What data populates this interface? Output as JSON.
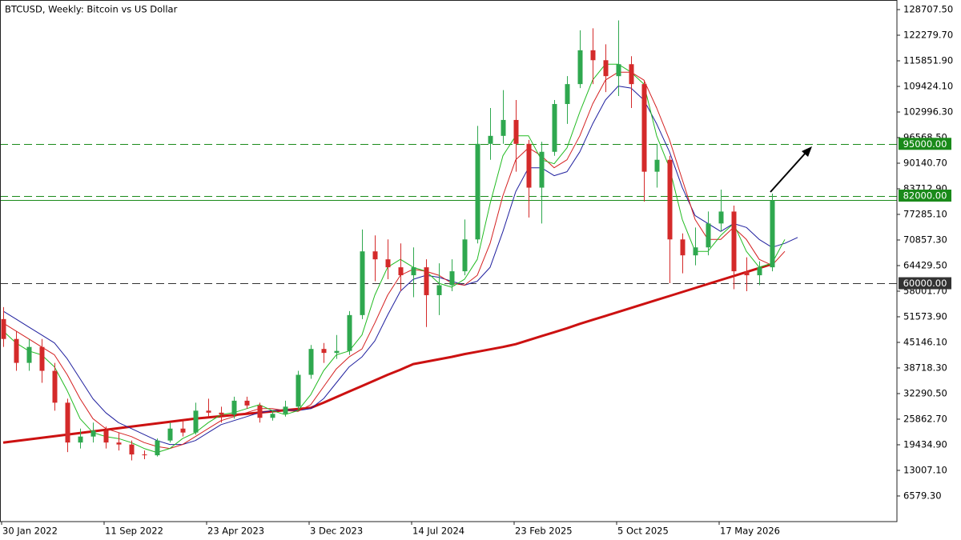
{
  "chart_data": {
    "type": "candlestick",
    "title": "BTCUSD, Weekly:  Bitcoin vs US Dollar",
    "categories": [
      "30 Jan 2022",
      null,
      null,
      null,
      null,
      null,
      null,
      null,
      "11 Sep 2022",
      null,
      null,
      null,
      null,
      null,
      null,
      null,
      "23 Apr 2023",
      null,
      null,
      null,
      null,
      null,
      null,
      null,
      "3 Dec 2023",
      null,
      null,
      null,
      null,
      null,
      null,
      null,
      "14 Jul 2024",
      null,
      null,
      null,
      null,
      null,
      null,
      null,
      "23 Feb 2025",
      null,
      null,
      null,
      null,
      null,
      null,
      null,
      "5 Oct 2025",
      null,
      null,
      null,
      null,
      null,
      null,
      null,
      "17 May 2026",
      null,
      null,
      null,
      null,
      null,
      null
    ],
    "ohlc": [
      [
        51000,
        54000,
        44000,
        46000
      ],
      [
        46000,
        48000,
        38000,
        40000
      ],
      [
        40000,
        46000,
        38000,
        44000
      ],
      [
        44000,
        46000,
        35000,
        38000
      ],
      [
        38000,
        40000,
        28000,
        30000
      ],
      [
        30000,
        31000,
        17600,
        20000
      ],
      [
        20000,
        23500,
        18500,
        21500
      ],
      [
        21500,
        25000,
        20000,
        23000
      ],
      [
        23000,
        24000,
        18500,
        20000
      ],
      [
        20000,
        22500,
        18000,
        19500
      ],
      [
        19500,
        20500,
        15500,
        17000
      ],
      [
        17000,
        18000,
        15800,
        16800
      ],
      [
        16800,
        21000,
        16500,
        20500
      ],
      [
        20500,
        25000,
        20000,
        23500
      ],
      [
        23500,
        25500,
        21500,
        22500
      ],
      [
        22500,
        30000,
        22000,
        28000
      ],
      [
        28000,
        31000,
        26500,
        27500
      ],
      [
        27500,
        29000,
        25000,
        27000
      ],
      [
        27000,
        31500,
        26000,
        30500
      ],
      [
        30500,
        31500,
        28500,
        29300
      ],
      [
        29300,
        30000,
        25000,
        26200
      ],
      [
        26200,
        28000,
        25500,
        27200
      ],
      [
        27200,
        30500,
        26500,
        29000
      ],
      [
        29000,
        38000,
        28500,
        37000
      ],
      [
        37000,
        44500,
        36000,
        43500
      ],
      [
        43500,
        45000,
        40000,
        42500
      ],
      [
        42500,
        47000,
        41000,
        43000
      ],
      [
        43000,
        53000,
        42000,
        52000
      ],
      [
        52000,
        73500,
        51000,
        68000
      ],
      [
        68000,
        72000,
        60500,
        66000
      ],
      [
        66000,
        71000,
        61000,
        64000
      ],
      [
        64000,
        70000,
        58000,
        62000
      ],
      [
        62000,
        69000,
        56500,
        64000
      ],
      [
        64000,
        66000,
        49000,
        57000
      ],
      [
        57000,
        65000,
        52000,
        59500
      ],
      [
        59500,
        66000,
        58000,
        63000
      ],
      [
        63000,
        76000,
        62000,
        71000
      ],
      [
        71000,
        99500,
        70000,
        95000
      ],
      [
        95000,
        104000,
        91000,
        97000
      ],
      [
        97000,
        108500,
        95000,
        101000
      ],
      [
        101000,
        106000,
        88000,
        95000
      ],
      [
        95000,
        96000,
        76500,
        84000
      ],
      [
        84000,
        95500,
        75000,
        93000
      ],
      [
        93000,
        106000,
        92000,
        105000
      ],
      [
        105000,
        112000,
        100000,
        110000
      ],
      [
        110000,
        123500,
        109000,
        118500
      ],
      [
        118500,
        124000,
        110000,
        116000
      ],
      [
        116000,
        120000,
        108000,
        112000
      ],
      [
        112000,
        126000,
        107000,
        115000
      ],
      [
        115000,
        117000,
        104000,
        110000
      ],
      [
        110000,
        111000,
        80500,
        88000
      ],
      [
        88000,
        95000,
        84000,
        91000
      ],
      [
        91000,
        92000,
        60000,
        71000
      ],
      [
        71000,
        72500,
        62500,
        67000
      ],
      [
        67000,
        74000,
        64500,
        69000
      ],
      [
        69000,
        78000,
        67000,
        75000
      ],
      [
        75000,
        83500,
        73000,
        78000
      ],
      [
        78000,
        79500,
        58500,
        63000
      ],
      [
        63000,
        66500,
        58000,
        62000
      ],
      [
        62000,
        65500,
        59500,
        64000
      ],
      [
        64000,
        82500,
        63000,
        80800
      ],
      null,
      null
    ],
    "up_color": "#2fa84f",
    "down_color": "#d42a2a",
    "lines": [
      {
        "color": "#cc1111",
        "width": 3,
        "values": [
          20000,
          20400,
          20800,
          21200,
          21600,
          22000,
          22400,
          22800,
          23200,
          23600,
          24000,
          24400,
          24800,
          25200,
          25600,
          26000,
          26300,
          26600,
          26900,
          27200,
          27500,
          27800,
          28100,
          28400,
          28700,
          30000,
          31400,
          32800,
          34200,
          35600,
          37000,
          38300,
          39700,
          40300,
          40900,
          41500,
          42200,
          42800,
          43400,
          44000,
          44700,
          45700,
          46700,
          47700,
          48700,
          49800,
          50800,
          51800,
          52800,
          53800,
          54800,
          55800,
          56800,
          57800,
          58800,
          59800,
          60800,
          61800,
          62800,
          63800,
          64800,
          null,
          null
        ]
      },
      {
        "color": "#1f1f9e",
        "width": 1,
        "values": [
          53000,
          51000,
          49000,
          47000,
          45000,
          41000,
          36000,
          31000,
          27500,
          25000,
          23500,
          22000,
          20500,
          19500,
          19500,
          20500,
          22500,
          24500,
          25500,
          26500,
          27500,
          28000,
          28200,
          28000,
          28500,
          31000,
          35000,
          39000,
          41500,
          45500,
          52000,
          58000,
          61000,
          62000,
          61500,
          60500,
          59500,
          60500,
          64000,
          73000,
          83000,
          89000,
          89000,
          87000,
          88000,
          93000,
          100000,
          106000,
          109500,
          109000,
          106000,
          100000,
          93000,
          84000,
          77000,
          75000,
          73000,
          75000,
          74000,
          71000,
          69000,
          70000,
          71500
        ]
      },
      {
        "color": "#d42020",
        "width": 1,
        "values": [
          50000,
          48000,
          46000,
          44000,
          42000,
          37000,
          31000,
          26000,
          23500,
          22500,
          21500,
          20000,
          19000,
          18500,
          19500,
          21500,
          23500,
          25500,
          26500,
          27500,
          28500,
          28500,
          28000,
          27800,
          29500,
          34000,
          38500,
          41500,
          43500,
          50000,
          57000,
          62000,
          63500,
          63000,
          62000,
          60000,
          59500,
          62000,
          70000,
          82000,
          91000,
          94000,
          92000,
          89000,
          91000,
          97000,
          105000,
          111000,
          113000,
          113000,
          111000,
          104000,
          96000,
          86000,
          76000,
          71000,
          71000,
          74000,
          71000,
          66000,
          64500,
          68000,
          null
        ]
      },
      {
        "color": "#22bb22",
        "width": 1,
        "values": [
          48000,
          45000,
          43000,
          42000,
          39000,
          33000,
          26000,
          22500,
          21500,
          21000,
          20000,
          18500,
          17500,
          18500,
          21000,
          22500,
          25000,
          27000,
          27500,
          28500,
          29500,
          28000,
          27000,
          28000,
          32000,
          38000,
          42000,
          43000,
          47000,
          57000,
          64000,
          66000,
          64000,
          63000,
          60000,
          59000,
          61000,
          66000,
          80000,
          92000,
          97000,
          97000,
          91000,
          90000,
          94000,
          103000,
          111000,
          115000,
          115000,
          113000,
          110000,
          97000,
          89000,
          76000,
          68000,
          68000,
          72000,
          75000,
          68000,
          64000,
          65000,
          71000,
          null
        ]
      }
    ],
    "levels": [
      {
        "value": 95000,
        "label": "95000.00",
        "color": "#1a8a1a",
        "style": "dashed"
      },
      {
        "value": 82000,
        "label": "82000.00",
        "color": "#1a8a1a",
        "style": "dashed"
      },
      {
        "value": 80800,
        "color": "#1a8a1a",
        "style": "solid"
      },
      {
        "value": 60000,
        "label": "60000.00",
        "color": "#333333",
        "style": "dashed"
      }
    ],
    "ylim": [
      143.5,
      130716.3
    ],
    "yticks": [
      {
        "value": 128707.5,
        "label": "128707.50"
      },
      {
        "value": 122279.7,
        "label": "122279.70"
      },
      {
        "value": 115851.9,
        "label": "115851.90"
      },
      {
        "value": 109424.1,
        "label": "109424.10"
      },
      {
        "value": 102996.3,
        "label": "102996.30"
      },
      {
        "value": 96568.5,
        "label": "96568.50"
      },
      {
        "value": 90140.7,
        "label": "90140.70"
      },
      {
        "value": 83712.9,
        "label": "83712.90"
      },
      {
        "value": 77285.1,
        "label": "77285.10"
      },
      {
        "value": 70857.3,
        "label": "70857.30"
      },
      {
        "value": 64429.5,
        "label": "64429.50"
      },
      {
        "value": 58001.7,
        "label": "58001.70"
      },
      {
        "value": 51573.9,
        "label": "51573.90"
      },
      {
        "value": 45146.1,
        "label": "45146.10"
      },
      {
        "value": 38718.3,
        "label": "38718.30"
      },
      {
        "value": 32290.5,
        "label": "32290.50"
      },
      {
        "value": 25862.7,
        "label": "25862.70"
      },
      {
        "value": 19434.9,
        "label": "19434.90"
      },
      {
        "value": 13007.1,
        "label": "13007.10"
      },
      {
        "value": 6579.3,
        "label": "6579.30"
      }
    ],
    "grid": false
  }
}
